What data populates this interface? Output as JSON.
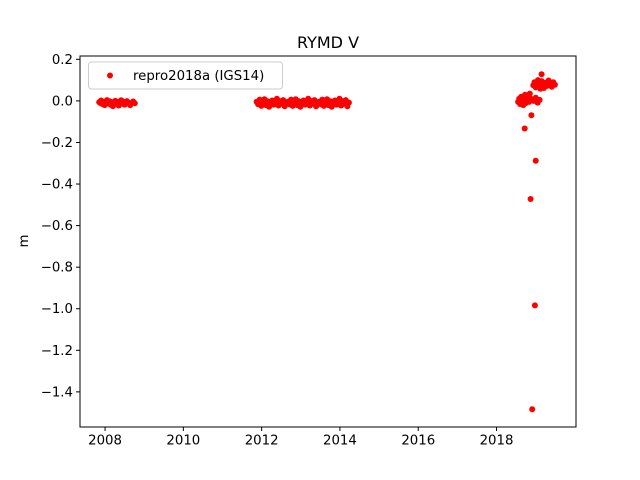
{
  "figure": {
    "background": "#ffffff"
  },
  "chart_data": {
    "type": "scatter",
    "title": "RYMD V",
    "xlabel": "",
    "ylabel": "m",
    "grid": false,
    "xlim": [
      2007.36,
      2020.03
    ],
    "ylim": [
      -1.569,
      0.216
    ],
    "xticks": {
      "values": [
        2008,
        2010,
        2012,
        2014,
        2016,
        2018
      ],
      "labels": [
        "2008",
        "2010",
        "2012",
        "2014",
        "2016",
        "2018"
      ]
    },
    "yticks": {
      "values": [
        0.2,
        0.0,
        -0.2,
        -0.4,
        -0.6,
        -0.8,
        -1.0,
        -1.2,
        -1.4
      ],
      "labels": [
        "0.2",
        "0.0",
        "−0.2",
        "−0.4",
        "−0.6",
        "−0.8",
        "−1.0",
        "−1.2",
        "−1.4"
      ]
    },
    "legend": {
      "position": "upper left",
      "entries": [
        {
          "label": "repro2018a (IGS14)",
          "color": "#ff0000",
          "marker": "circle"
        }
      ]
    },
    "series": [
      {
        "name": "repro2018a (IGS14)",
        "color": "#ff0000",
        "marker": "circle",
        "marker_size_px": 6,
        "points": [
          [
            2007.85,
            -0.006
          ],
          [
            2007.88,
            -0.01
          ],
          [
            2007.9,
            0.002
          ],
          [
            2007.93,
            -0.015
          ],
          [
            2007.96,
            -0.004
          ],
          [
            2007.99,
            -0.02
          ],
          [
            2008.02,
            -0.008
          ],
          [
            2008.05,
            0.004
          ],
          [
            2008.08,
            -0.012
          ],
          [
            2008.11,
            -0.002
          ],
          [
            2008.14,
            -0.018
          ],
          [
            2008.17,
            -0.006
          ],
          [
            2008.2,
            -0.025
          ],
          [
            2008.23,
            -0.01
          ],
          [
            2008.26,
            0.0
          ],
          [
            2008.29,
            -0.015
          ],
          [
            2008.32,
            -0.005
          ],
          [
            2008.35,
            -0.022
          ],
          [
            2008.38,
            -0.008
          ],
          [
            2008.41,
            0.003
          ],
          [
            2008.44,
            -0.013
          ],
          [
            2008.47,
            -0.004
          ],
          [
            2008.5,
            -0.018
          ],
          [
            2008.53,
            -0.007
          ],
          [
            2008.56,
            -0.001
          ],
          [
            2008.6,
            -0.012
          ],
          [
            2008.64,
            -0.02
          ],
          [
            2008.68,
            -0.009
          ],
          [
            2008.72,
            -0.003
          ],
          [
            2008.76,
            -0.011
          ],
          [
            2011.87,
            -0.004
          ],
          [
            2011.91,
            -0.016
          ],
          [
            2011.95,
            0.006
          ],
          [
            2011.99,
            -0.024
          ],
          [
            2012.03,
            -0.01
          ],
          [
            2012.07,
            0.008
          ],
          [
            2012.11,
            -0.02
          ],
          [
            2012.15,
            -0.002
          ],
          [
            2012.19,
            -0.028
          ],
          [
            2012.23,
            -0.012
          ],
          [
            2012.27,
            0.002
          ],
          [
            2012.31,
            -0.018
          ],
          [
            2012.35,
            -0.006
          ],
          [
            2012.39,
            0.01
          ],
          [
            2012.43,
            -0.022
          ],
          [
            2012.47,
            -0.001
          ],
          [
            2012.51,
            -0.014
          ],
          [
            2012.55,
            0.004
          ],
          [
            2012.59,
            -0.026
          ],
          [
            2012.63,
            -0.008
          ],
          [
            2012.67,
            -0.004
          ],
          [
            2012.71,
            -0.016
          ],
          [
            2012.75,
            0.006
          ],
          [
            2012.79,
            -0.024
          ],
          [
            2012.83,
            -0.01
          ],
          [
            2012.87,
            0.008
          ],
          [
            2012.91,
            -0.02
          ],
          [
            2012.95,
            -0.002
          ],
          [
            2012.99,
            -0.028
          ],
          [
            2013.03,
            -0.012
          ],
          [
            2013.07,
            0.002
          ],
          [
            2013.11,
            -0.018
          ],
          [
            2013.15,
            -0.006
          ],
          [
            2013.19,
            0.01
          ],
          [
            2013.23,
            -0.022
          ],
          [
            2013.27,
            -0.001
          ],
          [
            2013.31,
            -0.014
          ],
          [
            2013.35,
            0.004
          ],
          [
            2013.39,
            -0.026
          ],
          [
            2013.43,
            -0.008
          ],
          [
            2013.47,
            -0.004
          ],
          [
            2013.51,
            -0.016
          ],
          [
            2013.55,
            0.006
          ],
          [
            2013.59,
            -0.024
          ],
          [
            2013.63,
            -0.01
          ],
          [
            2013.67,
            0.008
          ],
          [
            2013.71,
            -0.02
          ],
          [
            2013.75,
            -0.002
          ],
          [
            2013.79,
            -0.028
          ],
          [
            2013.83,
            -0.012
          ],
          [
            2013.87,
            0.002
          ],
          [
            2013.91,
            -0.018
          ],
          [
            2013.95,
            -0.006
          ],
          [
            2013.99,
            0.01
          ],
          [
            2014.03,
            -0.022
          ],
          [
            2014.07,
            -0.001
          ],
          [
            2014.11,
            -0.014
          ],
          [
            2014.15,
            0.004
          ],
          [
            2014.19,
            -0.026
          ],
          [
            2014.23,
            -0.008
          ],
          [
            2018.55,
            -0.005
          ],
          [
            2018.58,
            0.01
          ],
          [
            2018.6,
            -0.015
          ],
          [
            2018.63,
            0.02
          ],
          [
            2018.65,
            0.0
          ],
          [
            2018.68,
            -0.02
          ],
          [
            2018.7,
            0.015
          ],
          [
            2018.73,
            0.03
          ],
          [
            2018.75,
            -0.01
          ],
          [
            2018.78,
            0.005
          ],
          [
            2018.8,
            0.025
          ],
          [
            2018.83,
            -0.005
          ],
          [
            2018.85,
            0.035
          ],
          [
            2018.88,
            0.01
          ],
          [
            2018.95,
            0.0
          ],
          [
            2019.0,
            0.015
          ],
          [
            2019.05,
            -0.008
          ],
          [
            2019.1,
            0.005
          ],
          [
            2018.94,
            0.075
          ],
          [
            2018.97,
            0.09
          ],
          [
            2019.0,
            0.065
          ],
          [
            2019.03,
            0.085
          ],
          [
            2019.06,
            0.1
          ],
          [
            2019.09,
            0.07
          ],
          [
            2019.12,
            0.058
          ],
          [
            2019.15,
            0.095
          ],
          [
            2019.18,
            0.08
          ],
          [
            2019.21,
            0.062
          ],
          [
            2019.25,
            0.088
          ],
          [
            2019.29,
            0.072
          ],
          [
            2019.33,
            0.098
          ],
          [
            2019.37,
            0.082
          ],
          [
            2019.41,
            0.068
          ],
          [
            2019.45,
            0.09
          ],
          [
            2019.49,
            0.078
          ],
          [
            2019.15,
            0.128
          ],
          [
            2018.89,
            -0.069
          ],
          [
            2018.72,
            -0.133
          ],
          [
            2019.0,
            -0.288
          ],
          [
            2018.87,
            -0.472
          ],
          [
            2018.98,
            -0.984
          ],
          [
            2018.91,
            -1.484
          ]
        ]
      }
    ]
  }
}
